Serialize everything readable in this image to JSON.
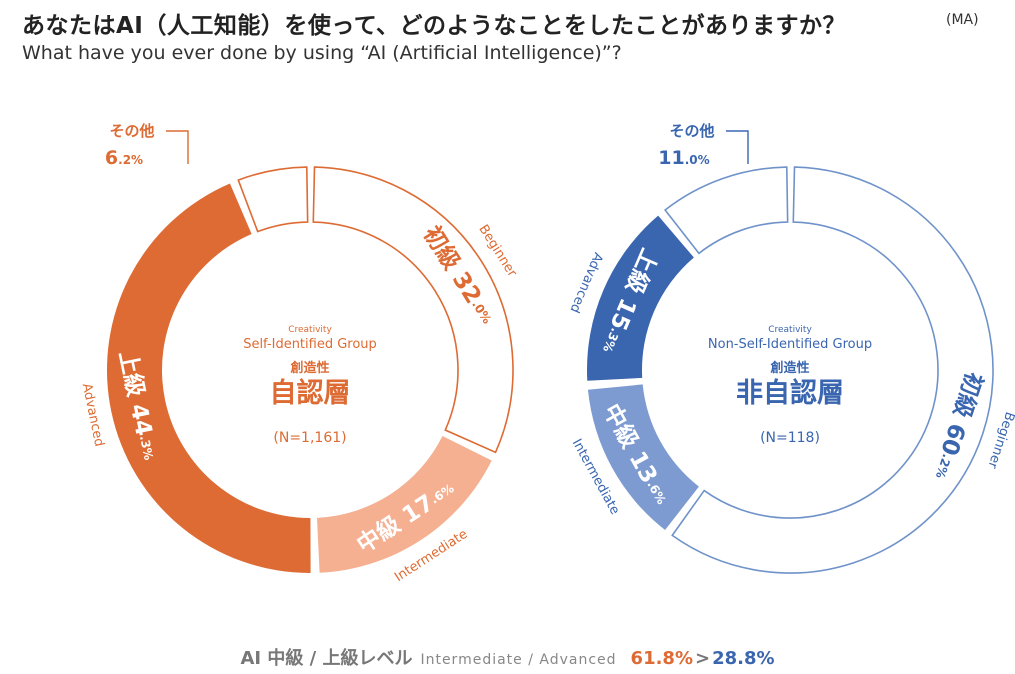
{
  "header": {
    "title_jp": "あなたはAI（人工知能）を使って、どのようなことをしたことがありますか？",
    "title_tag": "(MA)",
    "title_en": "What have you ever done by using “AI (Artificial Intelligence)”?"
  },
  "chart_data": [
    {
      "type": "donut",
      "group": "self",
      "center": {
        "en_small": "Creativity",
        "en": "Self-Identified Group",
        "jp_small": "創造性",
        "jp": "自認層",
        "n": "(N=1,161)"
      },
      "segments": [
        {
          "key": "beginner",
          "jp": "初級",
          "en": "Beginner",
          "value": 32.0,
          "int": "32",
          "dec": ".0%",
          "style": "outline"
        },
        {
          "key": "intermediate",
          "jp": "中級",
          "en": "Intermediate",
          "value": 17.6,
          "int": "17",
          "dec": ".6%",
          "style": "light"
        },
        {
          "key": "advanced",
          "jp": "上級",
          "en": "Advanced",
          "value": 44.3,
          "int": "44",
          "dec": ".3%",
          "style": "dark"
        },
        {
          "key": "other",
          "jp": "その他",
          "value": 6.2,
          "int": "6",
          "dec": ".2%",
          "style": "outline"
        }
      ],
      "colors": {
        "dark": "#dd6b33",
        "light": "#f5b091",
        "outline": "#dd6b33"
      }
    },
    {
      "type": "donut",
      "group": "non-self",
      "center": {
        "en_small": "Creativity",
        "en": "Non-Self-Identified Group",
        "jp_small": "創造性",
        "jp": "非自認層",
        "n": "(N=118)"
      },
      "segments": [
        {
          "key": "beginner",
          "jp": "初級",
          "en": "Beginner",
          "value": 60.2,
          "int": "60",
          "dec": ".2%",
          "style": "outline"
        },
        {
          "key": "intermediate",
          "jp": "中級",
          "en": "Intermediate",
          "value": 13.6,
          "int": "13",
          "dec": ".6%",
          "style": "light"
        },
        {
          "key": "advanced",
          "jp": "上級",
          "en": "Advanced",
          "value": 15.3,
          "int": "15",
          "dec": ".3%",
          "style": "dark"
        },
        {
          "key": "other",
          "jp": "その他",
          "value": 11.0,
          "int": "11",
          "dec": ".0%",
          "style": "outline"
        }
      ],
      "colors": {
        "dark": "#3a66b0",
        "light": "#7d9bd1",
        "outline": "#6f93c9"
      }
    }
  ],
  "footer": {
    "label_jp": "AI 中級 / 上級レベル",
    "label_en": "Intermediate / Advanced",
    "value_a": "61.8%",
    "gt": ">",
    "value_b": "28.8%"
  }
}
